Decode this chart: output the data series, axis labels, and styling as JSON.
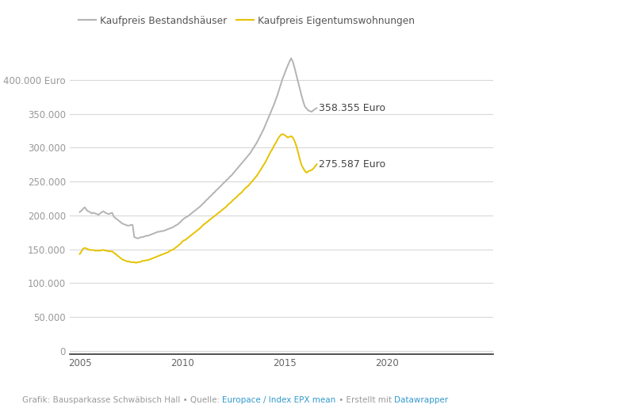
{
  "legend_gray": "Kaufpreis Bestandshäuser",
  "legend_yellow": "Kaufpreis Eigentumswohnungen",
  "label_gray": "358.355 Euro",
  "label_yellow": "275.587 Euro",
  "footer_plain1": "Grafik: Bausparkasse Schwäbisch Hall • Quelle: ",
  "footer_link1": "Europace / Index EPX mean",
  "footer_plain2": " • Erstellt mit ",
  "footer_link2": "Datawrapper",
  "color_gray": "#b3b3b3",
  "color_yellow": "#e6c200",
  "color_link": "#3399cc",
  "color_footer": "#999999",
  "background": "#ffffff",
  "grid_color": "#d8d8d8",
  "yticks": [
    0,
    50000,
    100000,
    150000,
    200000,
    250000,
    300000,
    350000,
    400000
  ],
  "ytick_labels": [
    "0",
    "50.000",
    "100.000",
    "150.000",
    "200.000",
    "250.000",
    "300.000",
    "350.000",
    "400.000 Euro"
  ],
  "xticks": [
    2005,
    2010,
    2015,
    2020
  ],
  "xlim": [
    2004.5,
    2025.2
  ],
  "ylim": [
    -5000,
    445000
  ],
  "houses_y": [
    205000,
    207000,
    210000,
    212000,
    208000,
    206000,
    205000,
    203000,
    204000,
    203000,
    202000,
    201000,
    203000,
    205000,
    206000,
    204000,
    203000,
    202000,
    203000,
    204000,
    198000,
    196000,
    194000,
    192000,
    190000,
    188000,
    187000,
    186000,
    185000,
    185000,
    186000,
    186000,
    168000,
    167000,
    166000,
    167000,
    168000,
    168000,
    169000,
    170000,
    170000,
    171000,
    172000,
    173000,
    174000,
    175000,
    176000,
    176000,
    177000,
    177000,
    178000,
    179000,
    180000,
    181000,
    182000,
    183000,
    185000,
    186000,
    188000,
    190000,
    193000,
    195000,
    197000,
    198000,
    200000,
    202000,
    204000,
    206000,
    208000,
    210000,
    212000,
    214000,
    217000,
    219000,
    222000,
    224000,
    227000,
    229000,
    232000,
    234000,
    237000,
    239000,
    242000,
    244000,
    247000,
    249000,
    252000,
    254000,
    257000,
    259000,
    262000,
    265000,
    268000,
    271000,
    274000,
    277000,
    280000,
    283000,
    286000,
    289000,
    292000,
    296000,
    300000,
    304000,
    308000,
    313000,
    318000,
    323000,
    328000,
    334000,
    340000,
    346000,
    352000,
    358000,
    364000,
    371000,
    378000,
    386000,
    394000,
    402000,
    408000,
    415000,
    421000,
    427000,
    432000,
    427000,
    418000,
    408000,
    398000,
    388000,
    378000,
    369000,
    361000,
    358000,
    355000,
    354000,
    353000,
    355000,
    357000,
    358355
  ],
  "flats_y": [
    143000,
    147000,
    151000,
    152000,
    151000,
    150000,
    149000,
    149000,
    149000,
    148000,
    148000,
    148000,
    148000,
    149000,
    149000,
    148000,
    148000,
    147000,
    147000,
    147000,
    145000,
    143000,
    141000,
    139000,
    137000,
    135000,
    134000,
    133000,
    132000,
    132000,
    131000,
    131000,
    131000,
    130000,
    131000,
    131000,
    132000,
    133000,
    133000,
    134000,
    134000,
    135000,
    136000,
    137000,
    138000,
    139000,
    140000,
    141000,
    142000,
    143000,
    144000,
    145000,
    146000,
    148000,
    149000,
    150000,
    152000,
    154000,
    156000,
    158000,
    161000,
    163000,
    164000,
    166000,
    168000,
    170000,
    172000,
    174000,
    176000,
    178000,
    180000,
    182000,
    185000,
    187000,
    189000,
    191000,
    193000,
    195000,
    197000,
    199000,
    201000,
    203000,
    205000,
    207000,
    209000,
    211000,
    213000,
    216000,
    218000,
    220000,
    223000,
    225000,
    227000,
    230000,
    232000,
    234000,
    237000,
    240000,
    242000,
    244000,
    247000,
    250000,
    253000,
    256000,
    259000,
    263000,
    267000,
    271000,
    275000,
    279000,
    284000,
    289000,
    294000,
    298000,
    303000,
    307000,
    312000,
    316000,
    319000,
    320000,
    319000,
    317000,
    315000,
    316000,
    317000,
    315000,
    310000,
    303000,
    294000,
    284000,
    275000,
    270000,
    266000,
    263000,
    265000,
    266000,
    267000,
    269000,
    272000,
    275587
  ]
}
